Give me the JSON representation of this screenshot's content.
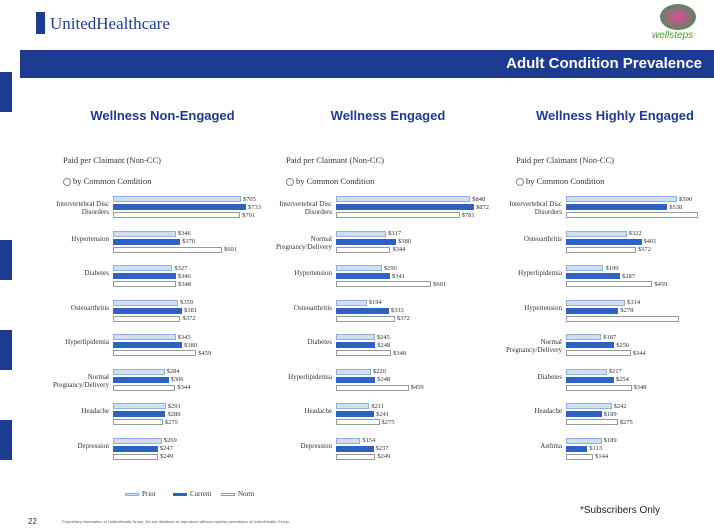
{
  "header": {
    "logo": "UnitedHealthcare",
    "brand": "wellsteps",
    "banner": "Adult Condition Prevalence"
  },
  "chart_data": [
    {
      "type": "hbar",
      "title": "Wellness Non-Engaged",
      "subtitle": "Paid per Claimant (Non-CC)",
      "note": "by Common Condition",
      "categories": [
        "Intervertebral Disc Disorders",
        "Hypertension",
        "Diabetes",
        "Osteoarthritis",
        "Hyperlipidemia",
        "Normal Pregnancy/Delivery",
        "Headache",
        "Depression"
      ],
      "series": [
        {
          "name": "Prior",
          "color": "#cfe0f5",
          "values": [
            705,
            346,
            327,
            359,
            345,
            284,
            291,
            269
          ],
          "value_labels": [
            "$705",
            "$346",
            "$327",
            "$359",
            "$345",
            "$284",
            "$291",
            "$269"
          ]
        },
        {
          "name": "Current",
          "color": "#2d62c4",
          "values": [
            733,
            370,
            346,
            381,
            380,
            306,
            289,
            247
          ],
          "value_labels": [
            "$733",
            "$370",
            "$346",
            "$381",
            "$380",
            "$306",
            "$289",
            "$247"
          ]
        },
        {
          "name": "Norm",
          "color": "#ffffff",
          "values": [
            701,
            601,
            348,
            372,
            459,
            344,
            275,
            249
          ],
          "value_labels": [
            "$701",
            "$601",
            "$348",
            "$372",
            "$459",
            "$344",
            "$275",
            "$249"
          ]
        }
      ]
    },
    {
      "type": "hbar",
      "title": "Wellness Engaged",
      "subtitle": "Paid per Claimant (Non-CC)",
      "note": "by Common Condition",
      "categories": [
        "Intervertebral Disc Disorders",
        "Normal Pregnancy/Delivery",
        "Hypertension",
        "Osteoarthritis",
        "Diabetes",
        "Hyperlipidemia",
        "Headache",
        "Depression"
      ],
      "series": [
        {
          "color": "#cfe0f5",
          "values": [
            848,
            317,
            290,
            194,
            245,
            220,
            211,
            154
          ],
          "value_labels": [
            "$848",
            "$317",
            "$290",
            "$194",
            "$245",
            "$220",
            "$211",
            "$154"
          ]
        },
        {
          "color": "#2d62c4",
          "values": [
            872,
            380,
            341,
            333,
            248,
            248,
            241,
            237
          ],
          "value_labels": [
            "$872",
            "$380",
            "$341",
            "$333",
            "$248",
            "$248",
            "$241",
            "$237"
          ]
        },
        {
          "color": "#ffffff",
          "values": [
            781,
            344,
            601,
            372,
            348,
            459,
            275,
            249
          ],
          "value_labels": [
            "$781",
            "$344",
            "$601",
            "$372",
            "$348",
            "$459",
            "$275",
            "$249"
          ]
        }
      ]
    },
    {
      "type": "hbar",
      "title": "Wellness Highly Engaged",
      "subtitle": "Paid per Claimant (Non-CC)",
      "note": "by Common Condition",
      "categories": [
        "Intervertebral Disc Disorders",
        "Osteoarthritis",
        "Hyperlipidemia",
        "Hypertension",
        "Normal Pregnancy/Delivery",
        "Diabetes",
        "Headache",
        "Asthma"
      ],
      "series": [
        {
          "color": "#cfe0f5",
          "values": [
            590,
            322,
            199,
            314,
            187,
            217,
            242,
            189
          ],
          "value_labels": [
            "$590",
            "$322",
            "$199",
            "$314",
            "$187",
            "$217",
            "$242",
            "$189"
          ]
        },
        {
          "color": "#2d62c4",
          "values": [
            538,
            401,
            287,
            278,
            256,
            254,
            189,
            113
          ],
          "value_labels": [
            "$538",
            "$401",
            "$287",
            "$278",
            "$256",
            "$254",
            "$189",
            "$113"
          ]
        },
        {
          "color": "#ffffff",
          "values": [
            701,
            372,
            459,
            601,
            344,
            348,
            275,
            144
          ],
          "value_labels": [
            null,
            "$372",
            "$459",
            null,
            "$344",
            "$348",
            "$275",
            "$144"
          ]
        }
      ]
    }
  ],
  "footer": {
    "note": "*Subscribers Only",
    "page": "22",
    "legal": "Proprietary information of UnitedHealth Group. Do not distribute or reproduce without express permission of UnitedHealth Group."
  }
}
